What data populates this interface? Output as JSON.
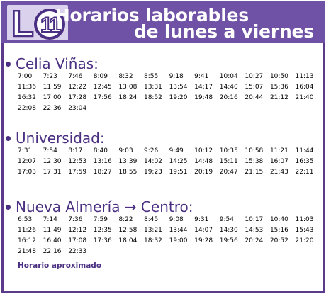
{
  "header": {
    "logo_letter": "L",
    "line_number": "11",
    "title_line1": "Horarios laborables",
    "title_line2": "de lunes a viernes"
  },
  "colors": {
    "header_bg": "#6f52a6",
    "accent": "#4a2f82",
    "logo_box": "#dad2ec"
  },
  "sections": [
    {
      "title": "Celia Viñas:",
      "times": [
        "7:00",
        "7:23",
        "7:46",
        "8:09",
        "8:32",
        "8:55",
        "9:18",
        "9:41",
        "10:04",
        "10:27",
        "10:50",
        "11:13",
        "11:36",
        "11:59",
        "12:22",
        "12:45",
        "13:08",
        "13:31",
        "13:54",
        "14:17",
        "14:40",
        "15:07",
        "15:36",
        "16:04",
        "16:32",
        "17:00",
        "17:28",
        "17:56",
        "18:24",
        "18:52",
        "19:20",
        "19:48",
        "20:16",
        "20:44",
        "21:12",
        "21:40",
        "22:08",
        "22:36",
        "23:04"
      ]
    },
    {
      "title": "Universidad:",
      "times": [
        "7:31",
        "7:54",
        "8:17",
        "8:40",
        "9:03",
        "9:26",
        "9:49",
        "10:12",
        "10:35",
        "10:58",
        "11:21",
        "11:44",
        "12:07",
        "12:30",
        "12:53",
        "13:16",
        "13:39",
        "14:02",
        "14:25",
        "14:48",
        "15:11",
        "15:38",
        "16:07",
        "16:35",
        "17:03",
        "17:31",
        "17:59",
        "18:27",
        "18:55",
        "19:23",
        "19:51",
        "20:19",
        "20:47",
        "21:15",
        "21:43",
        "22:11"
      ]
    },
    {
      "title": "Nueva Almería → Centro:",
      "times": [
        "6:53",
        "7:14",
        "7:36",
        "7:59",
        "8:22",
        "8:45",
        "9:08",
        "9:31",
        "9:54",
        "10:17",
        "10:40",
        "11:03",
        "11:26",
        "11:49",
        "12:12",
        "12:35",
        "12:58",
        "13:21",
        "13:44",
        "14:07",
        "14:30",
        "14:53",
        "15:16",
        "15:43",
        "16:12",
        "16:40",
        "17:08",
        "17:36",
        "18:04",
        "18:32",
        "19:00",
        "19:28",
        "19:56",
        "20:24",
        "20:52",
        "21:20",
        "21:48",
        "22:16",
        "22:33"
      ],
      "note": "Horario aproximado"
    }
  ]
}
